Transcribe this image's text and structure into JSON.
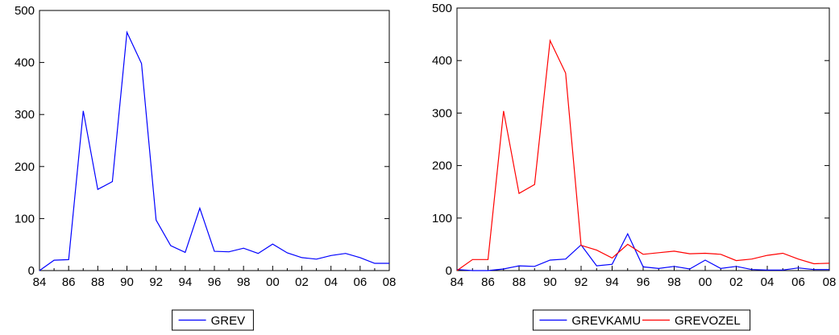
{
  "chart_data": [
    {
      "type": "line",
      "title": "",
      "xlabel": "",
      "ylabel": "",
      "ylim": [
        0,
        500
      ],
      "yticks": [
        0,
        100,
        200,
        300,
        400,
        500
      ],
      "xlim": [
        1984,
        2008
      ],
      "xticks": [
        1984,
        1986,
        1988,
        1990,
        1992,
        1994,
        1996,
        1998,
        2000,
        2002,
        2004,
        2006,
        2008
      ],
      "xtick_labels": [
        "84",
        "86",
        "88",
        "90",
        "92",
        "94",
        "96",
        "98",
        "00",
        "02",
        "04",
        "06",
        "08"
      ],
      "grid": false,
      "legend_position": "bottom-center",
      "x": [
        1984,
        1985,
        1986,
        1987,
        1988,
        1989,
        1990,
        1991,
        1992,
        1993,
        1994,
        1995,
        1996,
        1997,
        1998,
        1999,
        2000,
        2001,
        2002,
        2003,
        2004,
        2005,
        2006,
        2007,
        2008
      ],
      "series": [
        {
          "name": "GREV",
          "color": "#0000ff",
          "values": [
            0,
            20,
            21,
            307,
            156,
            171,
            458,
            398,
            97,
            48,
            35,
            120,
            37,
            36,
            43,
            33,
            51,
            34,
            25,
            22,
            29,
            33,
            25,
            14,
            14
          ]
        }
      ]
    },
    {
      "type": "line",
      "title": "",
      "xlabel": "",
      "ylabel": "",
      "ylim": [
        0,
        500
      ],
      "yticks": [
        0,
        100,
        200,
        300,
        400,
        500
      ],
      "xlim": [
        1984,
        2008
      ],
      "xticks": [
        1984,
        1986,
        1988,
        1990,
        1992,
        1994,
        1996,
        1998,
        2000,
        2002,
        2004,
        2006,
        2008
      ],
      "xtick_labels": [
        "84",
        "86",
        "88",
        "90",
        "92",
        "94",
        "96",
        "98",
        "00",
        "02",
        "04",
        "06",
        "08"
      ],
      "grid": false,
      "legend_position": "bottom-center",
      "x": [
        1984,
        1985,
        1986,
        1987,
        1988,
        1989,
        1990,
        1991,
        1992,
        1993,
        1994,
        1995,
        1996,
        1997,
        1998,
        1999,
        2000,
        2001,
        2002,
        2003,
        2004,
        2005,
        2006,
        2007,
        2008
      ],
      "series": [
        {
          "name": "GREVKAMU",
          "color": "#0000ff",
          "values": [
            2,
            0,
            0,
            3,
            9,
            8,
            20,
            22,
            49,
            9,
            12,
            70,
            7,
            4,
            8,
            3,
            20,
            4,
            8,
            2,
            1,
            1,
            5,
            2,
            2
          ]
        },
        {
          "name": "GREVOZEL",
          "color": "#ff0000",
          "values": [
            0,
            21,
            21,
            304,
            147,
            164,
            438,
            376,
            48,
            39,
            24,
            50,
            31,
            34,
            37,
            32,
            33,
            31,
            19,
            22,
            29,
            33,
            22,
            13,
            14
          ]
        }
      ]
    }
  ]
}
